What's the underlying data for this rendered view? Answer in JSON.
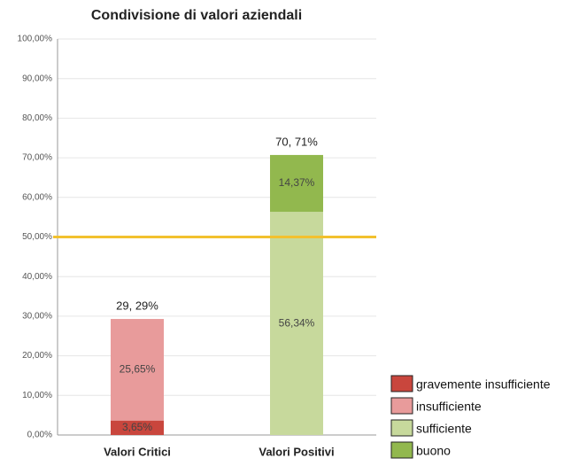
{
  "chart_data": {
    "type": "stacked_bar",
    "title": "Condivisione di valori aziendali",
    "categories": [
      "Valori Critici",
      "Valori Positivi"
    ],
    "series": [
      {
        "name": "gravemente insufficiente",
        "color": "#c9463d",
        "values": [
          3.65,
          null
        ],
        "value_labels": [
          "3,65%",
          null
        ]
      },
      {
        "name": "insufficiente",
        "color": "#e89b9b",
        "values": [
          25.65,
          null
        ],
        "value_labels": [
          "25,65%",
          null
        ]
      },
      {
        "name": "sufficiente",
        "color": "#c7d99c",
        "values": [
          null,
          56.34
        ],
        "value_labels": [
          null,
          "56,34%"
        ]
      },
      {
        "name": "buono",
        "color": "#92b84e",
        "values": [
          null,
          14.37
        ],
        "value_labels": [
          null,
          "14,37%"
        ]
      }
    ],
    "totals": [
      29.29,
      70.71
    ],
    "total_labels": [
      "29, 29%",
      "70, 71%"
    ],
    "reference_line": {
      "value": 50,
      "color": "#f2c12e"
    },
    "ylim": [
      0,
      100
    ],
    "yticks": [
      {
        "value": 0,
        "label": "0,00%"
      },
      {
        "value": 10,
        "label": "10,00%"
      },
      {
        "value": 20,
        "label": "20,00%"
      },
      {
        "value": 30,
        "label": "30,00%"
      },
      {
        "value": 40,
        "label": "40,00%"
      },
      {
        "value": 50,
        "label": "50,00%"
      },
      {
        "value": 60,
        "label": "60,00%"
      },
      {
        "value": 70,
        "label": "70,00%"
      },
      {
        "value": 80,
        "label": "80,00%"
      },
      {
        "value": 90,
        "label": "90,00%"
      },
      {
        "value": 100,
        "label": "100,00%"
      }
    ],
    "grid": true,
    "legend": "bottom-right"
  }
}
